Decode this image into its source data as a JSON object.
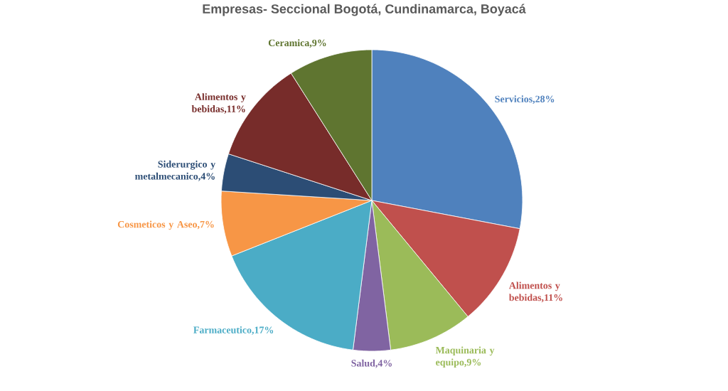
{
  "chart_data": {
    "type": "pie",
    "title": "Empresas- Seccional Bogotá, Cundinamarca, Boyacá",
    "categories": [
      "Servicios,28%",
      "Alimentos y bebidas,11%",
      "Maquinaria y equipo,9%",
      "Salud,4%",
      "Farmaceutico,17%",
      "Cosmeticos y Aseo,7%",
      "Siderurgico y metalmecanico,4%",
      "Alimentos y bebidas,11%",
      "Ceramica,9%"
    ],
    "values": [
      28,
      11,
      9,
      4,
      17,
      7,
      4,
      11,
      9
    ],
    "colors": [
      "#4f81bd",
      "#c0504d",
      "#9bbb59",
      "#8064a2",
      "#4bacc6",
      "#f79646",
      "#2c4d75",
      "#772c2a",
      "#5f7530"
    ]
  }
}
